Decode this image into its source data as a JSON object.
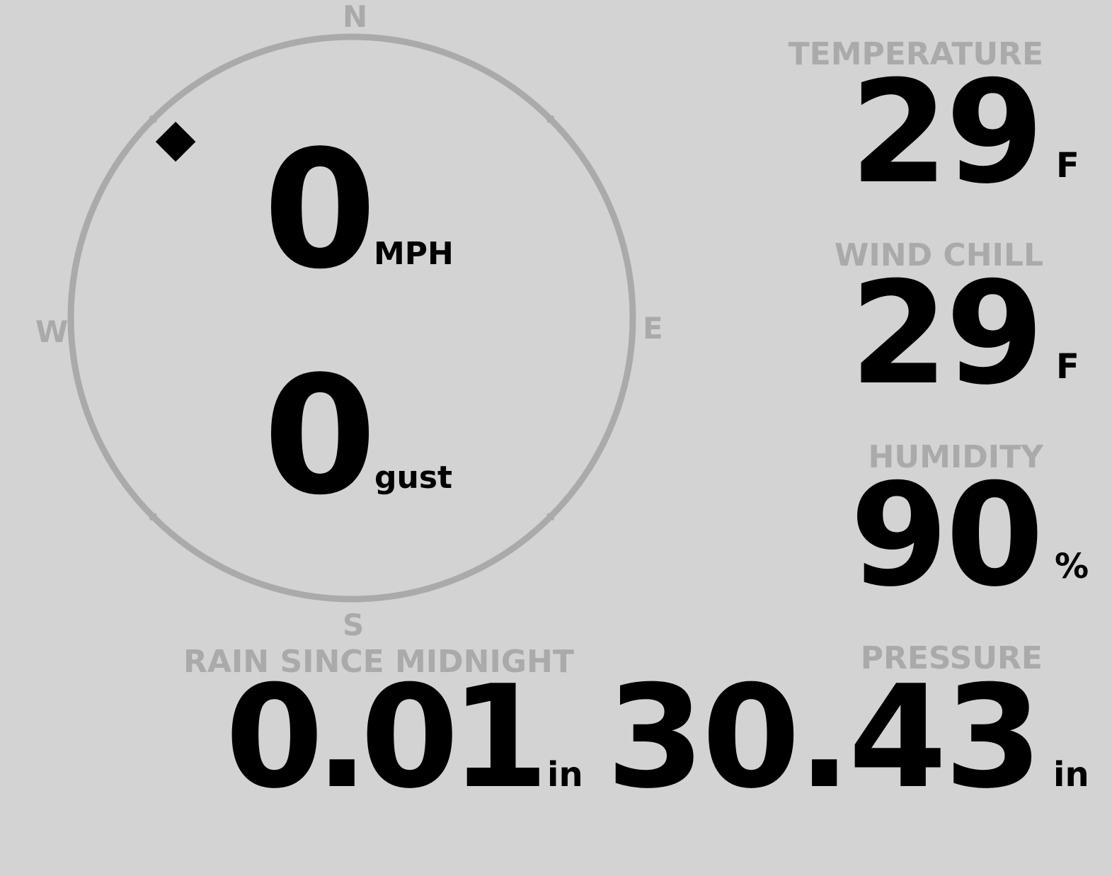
{
  "compass": {
    "north": "N",
    "east": "E",
    "south": "S",
    "west": "W",
    "wind_direction_deg": 315,
    "ring_color": "#aaaaaa",
    "indicator_icon": "diamond-icon"
  },
  "wind": {
    "speed": "0",
    "speed_unit": "MPH",
    "gust": "0",
    "gust_unit": "gust"
  },
  "temperature": {
    "label": "TEMPERATURE",
    "value": "29",
    "unit": "F"
  },
  "wind_chill": {
    "label": "WIND CHILL",
    "value": "29",
    "unit": "F"
  },
  "humidity": {
    "label": "HUMIDITY",
    "value": "90",
    "unit": "%"
  },
  "rain": {
    "label": "RAIN SINCE MIDNIGHT",
    "value": "0.01",
    "unit": "in"
  },
  "pressure": {
    "label": "PRESSURE",
    "value": "30.43",
    "unit": "in"
  },
  "colors": {
    "background": "#d3d3d3",
    "label": "#aaaaaa",
    "value": "#000000"
  }
}
